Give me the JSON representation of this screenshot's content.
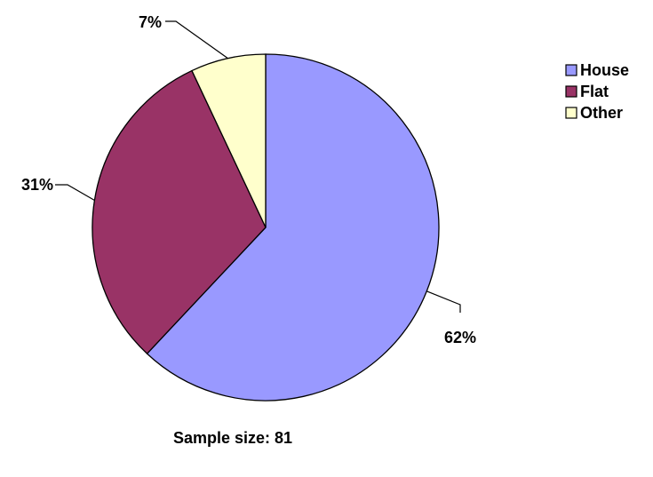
{
  "chart_data": {
    "type": "pie",
    "categories": [
      "House",
      "Flat",
      "Other"
    ],
    "values": [
      62,
      31,
      7
    ],
    "data_labels": [
      "62%",
      "31%",
      "7%"
    ],
    "colors": [
      "#9999ff",
      "#993366",
      "#ffffcc"
    ],
    "start_angle_deg": 0,
    "direction": "clockwise",
    "legend": {
      "placement": "right",
      "entries": [
        "House",
        "Flat",
        "Other"
      ]
    },
    "footer": "Sample size: 81"
  }
}
